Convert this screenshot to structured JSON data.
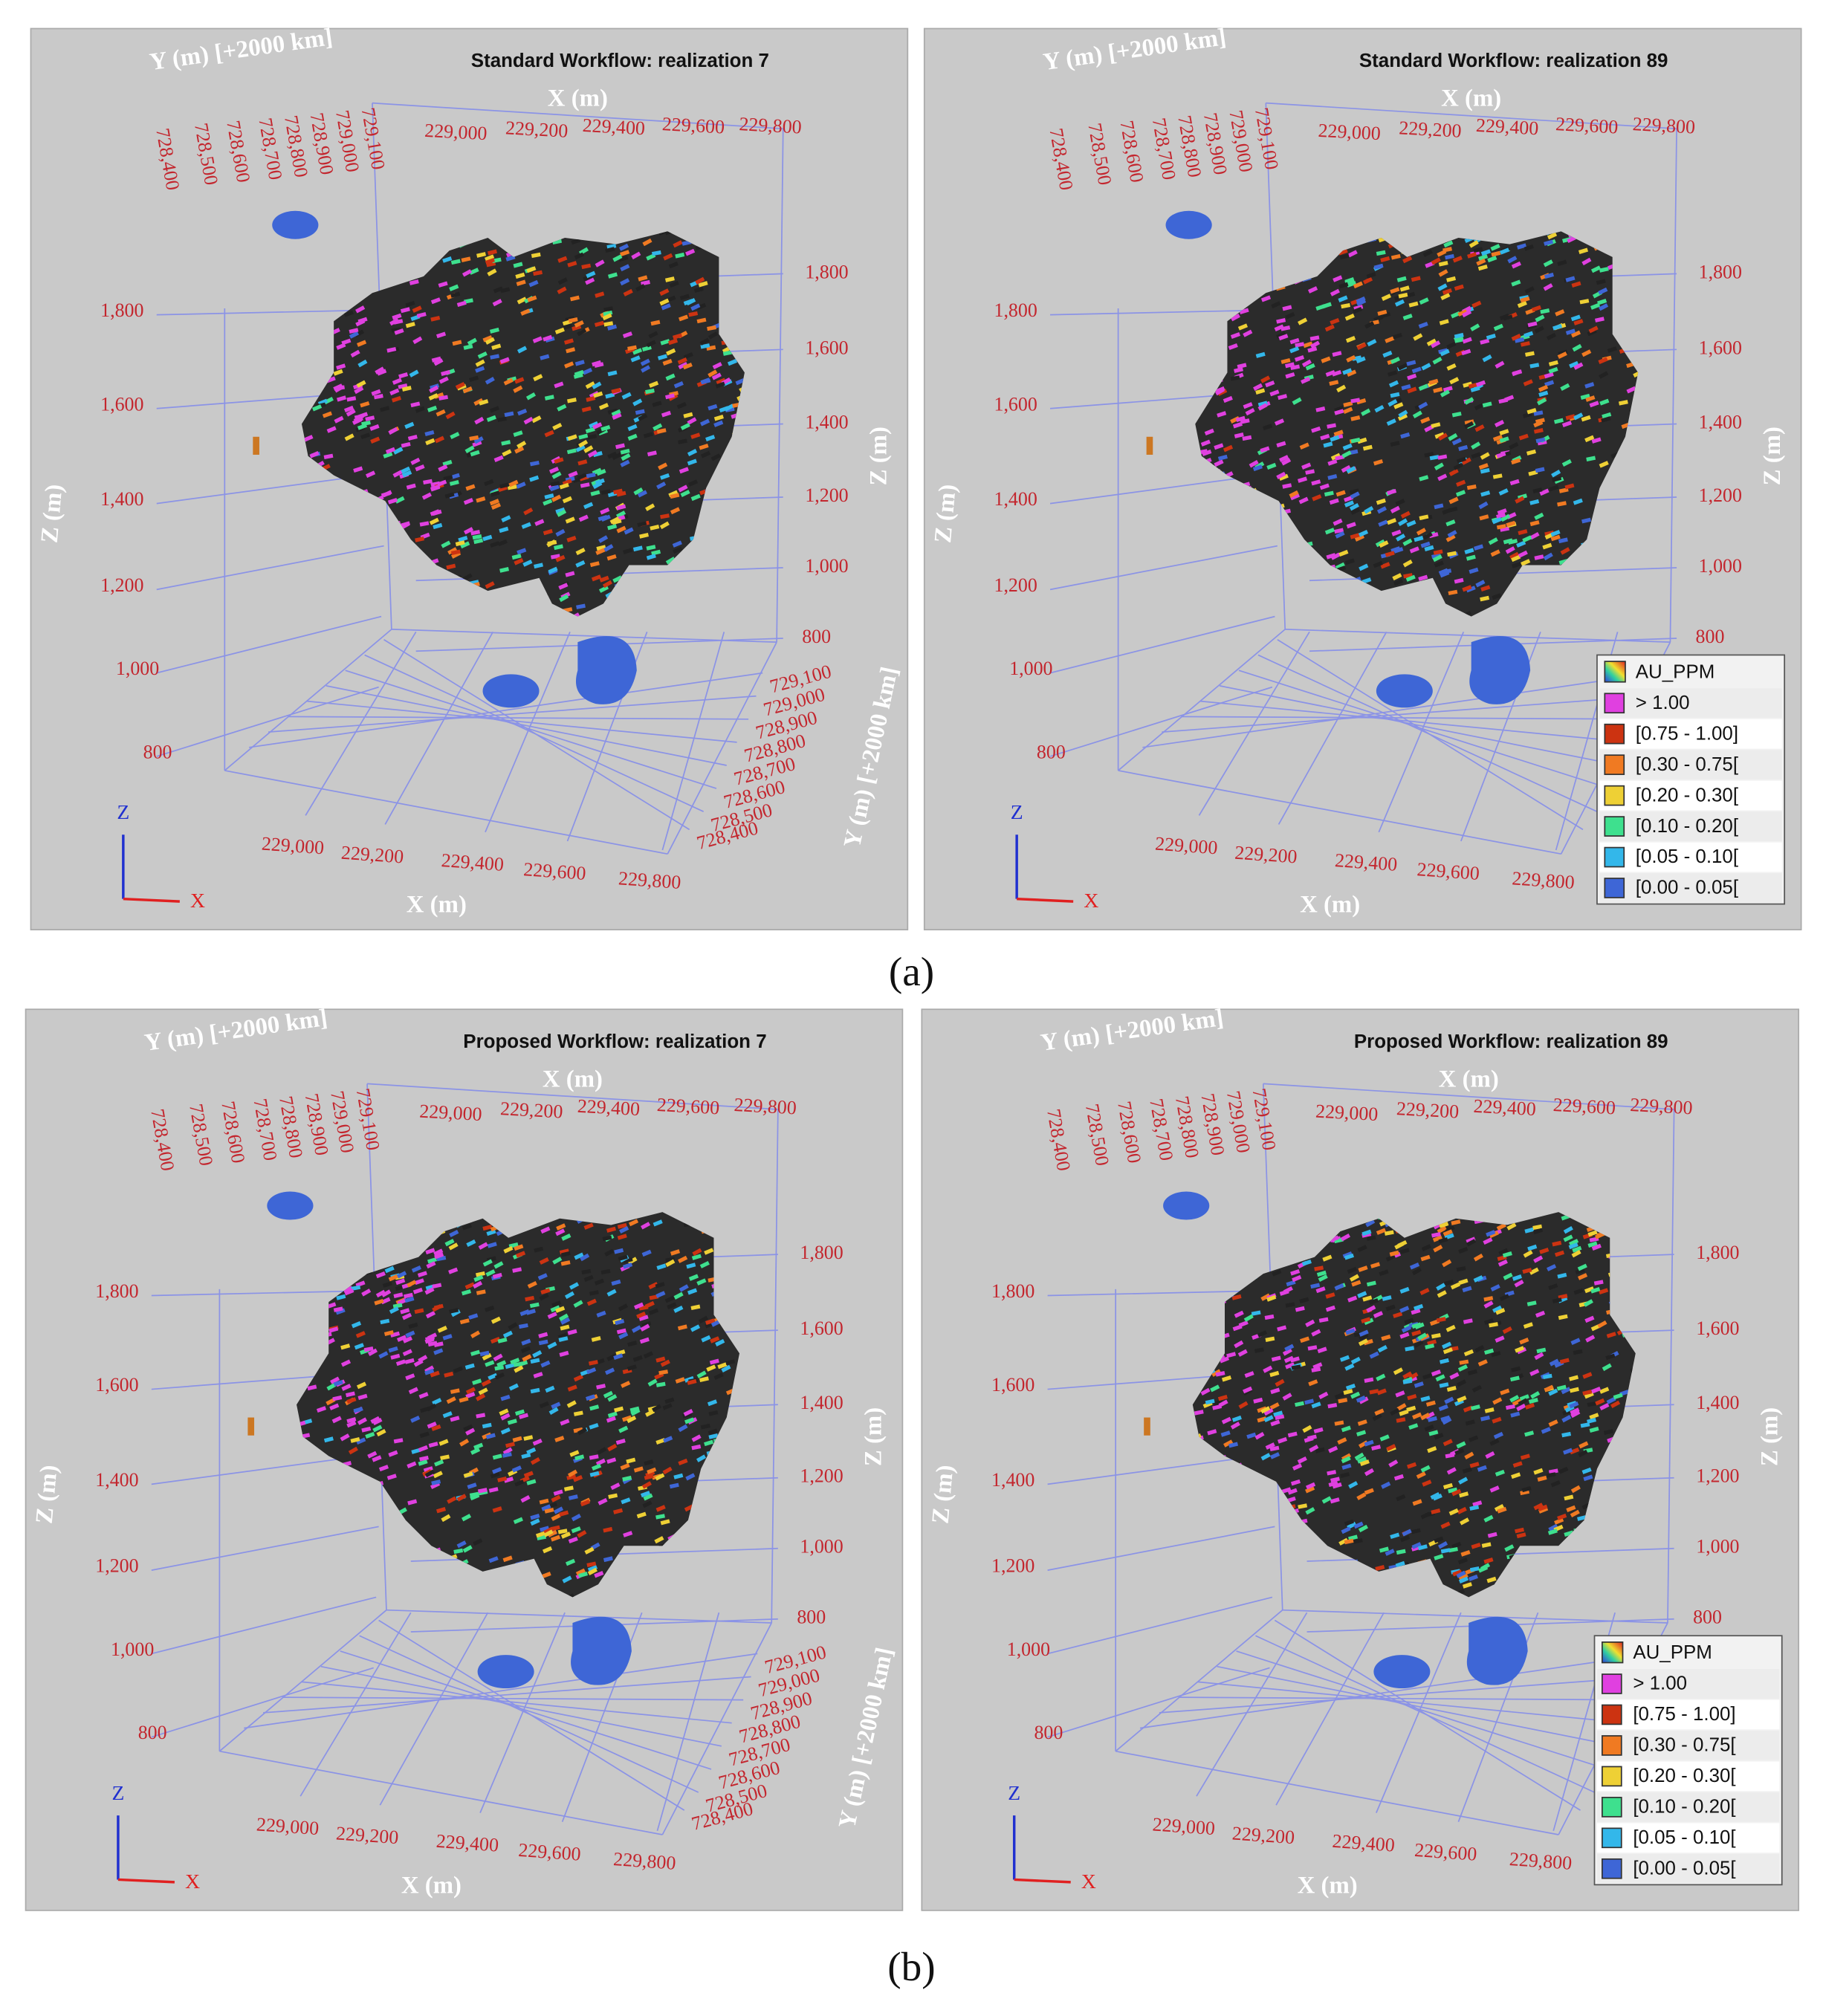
{
  "captions": [
    "(a)",
    "(b)"
  ],
  "panels": [
    {
      "title": "Standard Workflow: realization 7",
      "y_axis_top": {
        "label": "Y (m) [+2000 km]",
        "ticks": [
          "728,400",
          "728,500",
          "728,600",
          "728,700",
          "728,800",
          "728,900",
          "729,000",
          "729,100"
        ]
      },
      "x_axis_top": {
        "label": "X (m)",
        "ticks": [
          "229,000",
          "229,200",
          "229,400",
          "229,600",
          "229,800"
        ]
      },
      "z_axis_left": {
        "label": "Z (m)",
        "ticks": [
          "1,800",
          "1,600",
          "1,400",
          "1,200",
          "1,000",
          "800"
        ]
      },
      "z_axis_right": {
        "label": "Z (m)",
        "ticks": [
          "1,800",
          "1,600",
          "1,400",
          "1,200",
          "1,000",
          "800"
        ]
      },
      "x_axis_bottom": {
        "label": "X (m)",
        "ticks": [
          "229,000",
          "229,200",
          "229,400",
          "229,600",
          "229,800"
        ]
      },
      "y_axis_bottom": {
        "label": "Y (m) [+2000 km]",
        "ticks": [
          "729,100",
          "729,000",
          "728,900",
          "728,800",
          "728,700",
          "728,600",
          "728,500",
          "728,400"
        ]
      },
      "triad": [
        "Z",
        "X"
      ]
    },
    {
      "title": "Standard Workflow: realization 89",
      "y_axis_top": {
        "label": "Y (m) [+2000 km]",
        "ticks": [
          "728,400",
          "728,500",
          "728,600",
          "728,700",
          "728,800",
          "728,900",
          "729,000",
          "729,100"
        ]
      },
      "x_axis_top": {
        "label": "X (m)",
        "ticks": [
          "229,000",
          "229,200",
          "229,400",
          "229,600",
          "229,800"
        ]
      },
      "z_axis_left": {
        "label": "Z (m)",
        "ticks": [
          "1,800",
          "1,600",
          "1,400",
          "1,200",
          "1,000",
          "800"
        ]
      },
      "z_axis_right": {
        "label": "Z (m)",
        "ticks": [
          "1,800",
          "1,600",
          "1,400",
          "1,200",
          "1,000",
          "800"
        ]
      },
      "x_axis_bottom": {
        "label": "X (m)",
        "ticks": [
          "229,000",
          "229,200",
          "229,400",
          "229,600",
          "229,800"
        ]
      },
      "triad": [
        "Z",
        "X"
      ],
      "legend": {
        "title": "AU_PPM",
        "items": [
          {
            "label": "> 1.00",
            "color": "#e040e0"
          },
          {
            "label": "[0.75 - 1.00]",
            "color": "#cc3311"
          },
          {
            "label": "[0.30 - 0.75[",
            "color": "#f07a22"
          },
          {
            "label": "[0.20 - 0.30[",
            "color": "#eed035"
          },
          {
            "label": "[0.10 - 0.20[",
            "color": "#3ee08e"
          },
          {
            "label": "[0.05 - 0.10[",
            "color": "#33b7ea"
          },
          {
            "label": "[0.00 - 0.05[",
            "color": "#3e66d6"
          }
        ]
      }
    },
    {
      "title": "Proposed Workflow: realization 7",
      "y_axis_top": {
        "label": "Y (m) [+2000 km]",
        "ticks": [
          "728,400",
          "728,500",
          "728,600",
          "728,700",
          "728,800",
          "728,900",
          "729,000",
          "729,100"
        ]
      },
      "x_axis_top": {
        "label": "X (m)",
        "ticks": [
          "229,000",
          "229,200",
          "229,400",
          "229,600",
          "229,800"
        ]
      },
      "z_axis_left": {
        "label": "Z (m)",
        "ticks": [
          "1,800",
          "1,600",
          "1,400",
          "1,200",
          "1,000",
          "800"
        ]
      },
      "z_axis_right": {
        "label": "Z (m)",
        "ticks": [
          "1,800",
          "1,600",
          "1,400",
          "1,200",
          "1,000",
          "800"
        ]
      },
      "x_axis_bottom": {
        "label": "X (m)",
        "ticks": [
          "229,000",
          "229,200",
          "229,400",
          "229,600",
          "229,800"
        ]
      },
      "y_axis_bottom": {
        "label": "Y (m) [+2000 km]",
        "ticks": [
          "729,100",
          "729,000",
          "728,900",
          "728,800",
          "728,700",
          "728,600",
          "728,500",
          "728,400"
        ]
      },
      "triad": [
        "Z",
        "X"
      ]
    },
    {
      "title": "Proposed Workflow: realization 89",
      "y_axis_top": {
        "label": "Y (m) [+2000 km]",
        "ticks": [
          "728,400",
          "728,500",
          "728,600",
          "728,700",
          "728,800",
          "728,900",
          "729,000",
          "729,100"
        ]
      },
      "x_axis_top": {
        "label": "X (m)",
        "ticks": [
          "229,000",
          "229,200",
          "229,400",
          "229,600",
          "229,800"
        ]
      },
      "z_axis_left": {
        "label": "Z (m)",
        "ticks": [
          "1,800",
          "1,600",
          "1,400",
          "1,200",
          "1,000",
          "800"
        ]
      },
      "z_axis_right": {
        "label": "Z (m)",
        "ticks": [
          "1,800",
          "1,600",
          "1,400",
          "1,200",
          "1,000",
          "800"
        ]
      },
      "x_axis_bottom": {
        "label": "X (m)",
        "ticks": [
          "229,000",
          "229,200",
          "229,400",
          "229,600",
          "229,800"
        ]
      },
      "triad": [
        "Z",
        "X"
      ],
      "legend": {
        "title": "AU_PPM",
        "items": [
          {
            "label": "> 1.00",
            "color": "#e040e0"
          },
          {
            "label": "[0.75 - 1.00]",
            "color": "#cc3311"
          },
          {
            "label": "[0.30 - 0.75[",
            "color": "#f07a22"
          },
          {
            "label": "[0.20 - 0.30[",
            "color": "#eed035"
          },
          {
            "label": "[0.10 - 0.20[",
            "color": "#3ee08e"
          },
          {
            "label": "[0.05 - 0.10[",
            "color": "#33b7ea"
          },
          {
            "label": "[0.00 - 0.05[",
            "color": "#3e66d6"
          }
        ]
      }
    }
  ]
}
